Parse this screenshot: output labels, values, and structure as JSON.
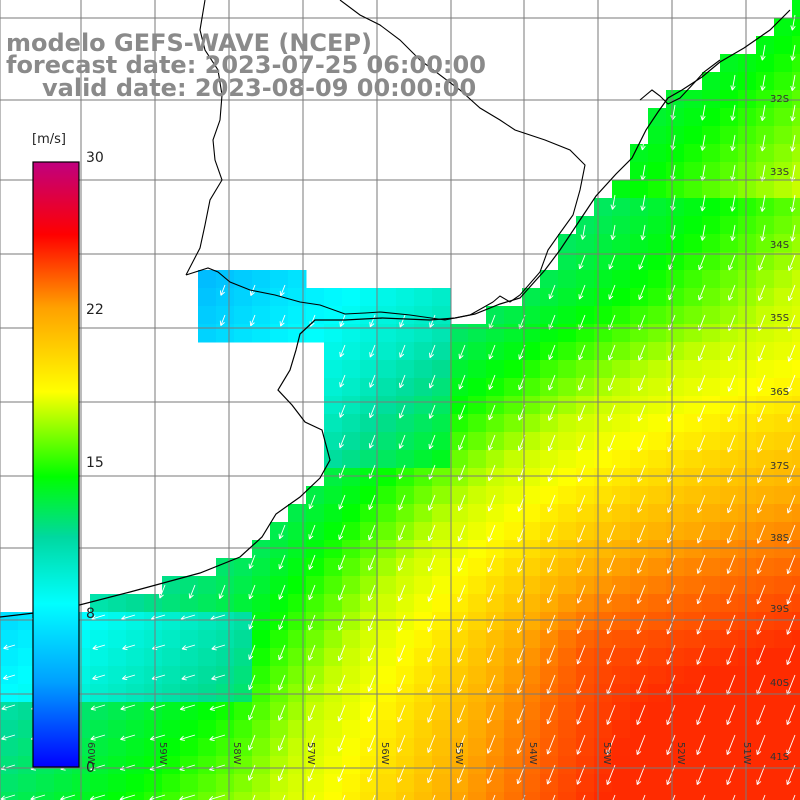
{
  "title": {
    "line1": "modelo GEFS-WAVE (NCEP)",
    "line2": "forecast date: 2023-07-25 06:00:00",
    "line3": "valid date: 2023-08-09 00:00:00"
  },
  "colorbar": {
    "unit": "[m/s]",
    "ticks": [
      "30",
      "22",
      "15",
      "8",
      "0"
    ],
    "colors": [
      "#0000ff",
      "#00a0ff",
      "#00ffff",
      "#00ff00",
      "#ffff00",
      "#ffa000",
      "#ff0000",
      "#c0007f"
    ]
  },
  "lat_labels": [
    "32S",
    "33S",
    "34S",
    "35S",
    "36S",
    "37S",
    "38S",
    "39S",
    "40S",
    "41S"
  ],
  "lon_labels": [
    "60W",
    "59W",
    "58W",
    "57W",
    "56W",
    "55W",
    "54W",
    "53W",
    "52W",
    "51W"
  ],
  "colors": {
    "land": "#ffffff",
    "coast": "#000000",
    "grid": "#808080",
    "title": "#8a8a8a"
  }
}
